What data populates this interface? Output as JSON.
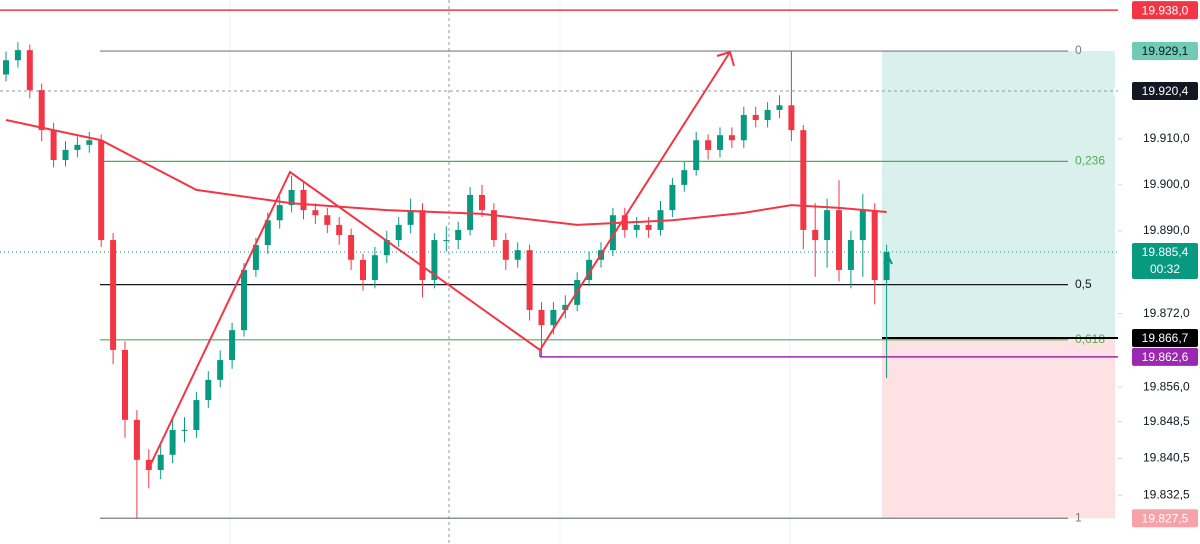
{
  "chart_data": {
    "type": "candlestick",
    "ylim": [
      19821.9,
      19940.2
    ],
    "yticks": [
      {
        "value": 19910,
        "label": "19.910,0"
      },
      {
        "value": 19900,
        "label": "19.900,0"
      },
      {
        "value": 19890,
        "label": "19.890,0"
      },
      {
        "value": 19872,
        "label": "19.872,0"
      },
      {
        "value": 19856,
        "label": "19.856,0"
      },
      {
        "value": 19848.5,
        "label": "19.848,5"
      },
      {
        "value": 19840.5,
        "label": "19.840,5"
      },
      {
        "value": 19832.5,
        "label": "19.832,5"
      }
    ],
    "up_color": "#089981",
    "down_color": "#f23645",
    "candles": [
      [
        19924.0,
        19929.0,
        19922.5,
        19927.1
      ],
      [
        19927.1,
        19931.0,
        19925.5,
        19929.3
      ],
      [
        19929.3,
        19930.5,
        19918.8,
        19920.6
      ],
      [
        19920.6,
        19922.0,
        19909.5,
        19911.9
      ],
      [
        19911.9,
        19913.5,
        19903.8,
        19905.4
      ],
      [
        19905.4,
        19909.5,
        19904.0,
        19907.6
      ],
      [
        19907.6,
        19910.5,
        19906.0,
        19908.7
      ],
      [
        19908.7,
        19911.5,
        19907.0,
        19909.7
      ],
      [
        19909.7,
        19911.0,
        19886.5,
        19888.0
      ],
      [
        19888.0,
        19889.5,
        19861.0,
        19864.1
      ],
      [
        19864.1,
        19866.0,
        19845.0,
        19848.9
      ],
      [
        19848.9,
        19851.0,
        19827.5,
        19840.2
      ],
      [
        19840.2,
        19842.5,
        19834.0,
        19838.0
      ],
      [
        19838.0,
        19843.5,
        19836.0,
        19841.3
      ],
      [
        19841.3,
        19849.0,
        19839.5,
        19846.7
      ],
      [
        19846.7,
        19849.5,
        19844.0,
        19846.7
      ],
      [
        19846.7,
        19855.0,
        19845.0,
        19853.2
      ],
      [
        19853.2,
        19859.5,
        19851.5,
        19857.6
      ],
      [
        19857.6,
        19864.0,
        19856.0,
        19861.9
      ],
      [
        19861.9,
        19870.0,
        19860.0,
        19868.4
      ],
      [
        19868.4,
        19883.0,
        19867.0,
        19881.5
      ],
      [
        19881.5,
        19888.5,
        19880.0,
        19886.9
      ],
      [
        19886.9,
        19894.0,
        19885.0,
        19892.3
      ],
      [
        19892.3,
        19897.5,
        19890.5,
        19895.6
      ],
      [
        19895.6,
        19902.0,
        19894.0,
        19898.9
      ],
      [
        19898.9,
        19900.5,
        19892.5,
        19894.5
      ],
      [
        19894.5,
        19896.0,
        19891.5,
        19893.4
      ],
      [
        19893.4,
        19895.0,
        19889.5,
        19891.3
      ],
      [
        19891.3,
        19893.0,
        19887.0,
        19889.1
      ],
      [
        19889.1,
        19890.5,
        19881.5,
        19883.7
      ],
      [
        19883.7,
        19885.0,
        19877.0,
        19879.3
      ],
      [
        19879.3,
        19886.5,
        19877.5,
        19884.7
      ],
      [
        19884.7,
        19890.0,
        19883.0,
        19888.0
      ],
      [
        19888.0,
        19893.0,
        19886.5,
        19891.3
      ],
      [
        19891.3,
        19897.0,
        19889.5,
        19894.5
      ],
      [
        19894.5,
        19896.0,
        19875.5,
        19879.3
      ],
      [
        19879.3,
        19889.5,
        19877.5,
        19888.0
      ],
      [
        19888.0,
        19891.0,
        19885.5,
        19888.0
      ],
      [
        19888.0,
        19892.0,
        19886.0,
        19890.2
      ],
      [
        19890.2,
        19899.5,
        19889.0,
        19897.8
      ],
      [
        19897.8,
        19900.0,
        19893.0,
        19894.5
      ],
      [
        19894.5,
        19896.0,
        19886.5,
        19888.0
      ],
      [
        19888.0,
        19889.5,
        19881.5,
        19883.7
      ],
      [
        19883.7,
        19887.5,
        19882.0,
        19885.8
      ],
      [
        19885.8,
        19887.0,
        19870.5,
        19872.8
      ],
      [
        19872.8,
        19874.5,
        19862.6,
        19869.5
      ],
      [
        19869.5,
        19874.5,
        19867.5,
        19872.8
      ],
      [
        19872.8,
        19876.0,
        19871.0,
        19873.9
      ],
      [
        19873.9,
        19881.0,
        19872.5,
        19879.3
      ],
      [
        19879.3,
        19885.5,
        19878.0,
        19883.7
      ],
      [
        19883.7,
        19887.5,
        19882.0,
        19885.8
      ],
      [
        19885.8,
        19895.0,
        19884.5,
        19893.4
      ],
      [
        19893.4,
        19895.0,
        19888.5,
        19890.2
      ],
      [
        19890.2,
        19893.0,
        19888.5,
        19891.3
      ],
      [
        19891.3,
        19893.0,
        19888.5,
        19890.2
      ],
      [
        19890.2,
        19896.5,
        19889.0,
        19894.5
      ],
      [
        19894.5,
        19901.5,
        19893.0,
        19900.0
      ],
      [
        19900.0,
        19905.0,
        19898.5,
        19903.2
      ],
      [
        19903.2,
        19911.5,
        19902.0,
        19909.7
      ],
      [
        19909.7,
        19911.0,
        19905.5,
        19907.6
      ],
      [
        19907.6,
        19912.5,
        19906.0,
        19910.8
      ],
      [
        19910.8,
        19912.5,
        19908.0,
        19909.7
      ],
      [
        19909.7,
        19917.0,
        19908.0,
        19915.2
      ],
      [
        19915.2,
        19917.0,
        19912.5,
        19914.1
      ],
      [
        19914.1,
        19918.0,
        19912.5,
        19916.3
      ],
      [
        19916.3,
        19919.5,
        19914.5,
        19917.3
      ],
      [
        19917.3,
        19929.1,
        19909.5,
        19911.9
      ],
      [
        19911.9,
        19913.0,
        19886.0,
        19890.2
      ],
      [
        19890.2,
        19896.0,
        19880.0,
        19888.0
      ],
      [
        19888.0,
        19897.0,
        19882.0,
        19894.5
      ],
      [
        19894.5,
        19901.0,
        19879.0,
        19881.5
      ],
      [
        19881.5,
        19890.0,
        19877.5,
        19888.0
      ],
      [
        19888.0,
        19898.0,
        19880.0,
        19894.5
      ],
      [
        19894.5,
        19896.0,
        19874.0,
        19879.3
      ],
      [
        19879.3,
        19887.0,
        19858.0,
        19885.4
      ]
    ],
    "moving_average": {
      "color": "#f23645",
      "x": [
        0,
        8,
        16,
        24,
        32,
        40,
        48,
        56,
        62,
        66,
        70,
        74
      ],
      "values": [
        19914.1,
        19909.7,
        19898.9,
        19896.0,
        19894.5,
        19893.7,
        19891.3,
        19892.3,
        19893.9,
        19895.6,
        19895.0,
        19894.1
      ]
    },
    "fib_levels": [
      {
        "label": "0",
        "value": 19929.1,
        "color": "#787b86"
      },
      {
        "label": "0,236",
        "value": 19905.1,
        "color": "#4caf50"
      },
      {
        "label": "0,5",
        "value": 19878.3,
        "color": "#131722"
      },
      {
        "label": "0,618",
        "value": 19866.3,
        "color": "#4caf50"
      },
      {
        "label": "1",
        "value": 19827.5,
        "color": "#787b86"
      }
    ],
    "price_tags": [
      {
        "label": "19.938,0",
        "value": 19938.0,
        "color": "#f23645",
        "text_color": "#ffffff"
      },
      {
        "label": "19.929,1",
        "value": 19929.1,
        "color": "#6fcbb5",
        "text_color": "#131722"
      },
      {
        "label": "19.920,4",
        "value": 19920.4,
        "color": "#131722",
        "text_color": "#ffffff"
      },
      {
        "label": "19.885,4",
        "value": 19885.4,
        "color": "#089981",
        "text_color": "#ffffff",
        "countdown": "00:32"
      },
      {
        "label": "19.866,7",
        "value": 19866.7,
        "color": "#000000",
        "text_color": "#ffffff"
      },
      {
        "label": "19.862,6",
        "value": 19862.6,
        "color": "#9c27b0",
        "text_color": "#ffffff"
      },
      {
        "label": "19.827,5",
        "value": 19827.5,
        "color": "#f7a1a8",
        "text_color": "#ffffff"
      }
    ]
  }
}
